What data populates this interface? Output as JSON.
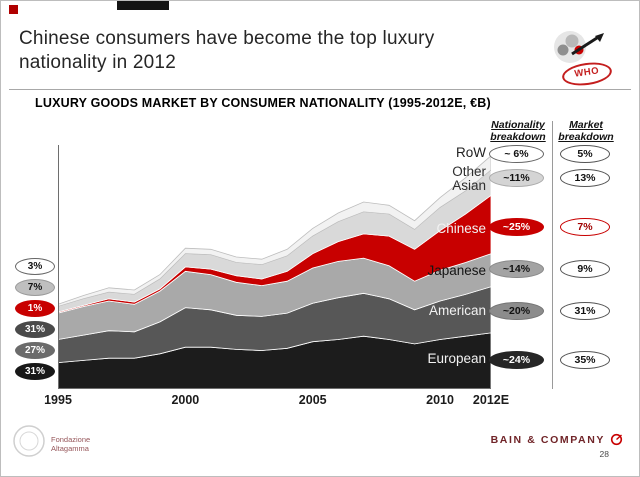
{
  "slide": {
    "title": "Chinese consumers have become the top luxury nationality in 2012",
    "who_stamp": "WHO",
    "page_number": "28",
    "footer_brand": "BAIN & COMPANY",
    "footer_logo_line1": "Fondazione",
    "footer_logo_line2": "Altagamma"
  },
  "chart_header": {
    "title": "LUXURY GOODS MARKET BY CONSUMER NATIONALITY (1995-2012E, €B)",
    "nationality_col": "Nationality breakdown",
    "market_col": "Market breakdown"
  },
  "colors": {
    "accent_red": "#c80000",
    "european": "#1c1c1c",
    "american": "#575757",
    "japanese": "#a9a9a9",
    "chinese": "#c80000",
    "other_asian": "#d9d9d9",
    "row": "#f2f2f2"
  },
  "left_badges": [
    {
      "label": "3%",
      "bg": "#ffffff",
      "fg": "#111111",
      "border": "#666666"
    },
    {
      "label": "7%",
      "bg": "#bfbfbf",
      "fg": "#111111",
      "border": "#9a9a9a"
    },
    {
      "label": "1%",
      "bg": "#c80000",
      "fg": "#ffffff",
      "border": "#c80000"
    },
    {
      "label": "31%",
      "bg": "#4a4a4a",
      "fg": "#ffffff",
      "border": "#4a4a4a"
    },
    {
      "label": "27%",
      "bg": "#6b6b6b",
      "fg": "#ffffff",
      "border": "#6b6b6b"
    },
    {
      "label": "31%",
      "bg": "#181818",
      "fg": "#ffffff",
      "border": "#181818"
    }
  ],
  "nationality_breakdown": [
    {
      "label": "~ 6%",
      "bg": "#ffffff",
      "fg": "#111111",
      "border": "#666666"
    },
    {
      "label": "~11%",
      "bg": "#d4d4d4",
      "fg": "#111111",
      "border": "#ababab"
    },
    {
      "label": "~25%",
      "bg": "#c80000",
      "fg": "#ffffff",
      "border": "#c80000"
    },
    {
      "label": "~14%",
      "bg": "#a3a3a3",
      "fg": "#111111",
      "border": "#8a8a8a"
    },
    {
      "label": "~20%",
      "bg": "#8c8c8c",
      "fg": "#111111",
      "border": "#757575"
    },
    {
      "label": "~24%",
      "bg": "#262626",
      "fg": "#ffffff",
      "border": "#262626"
    }
  ],
  "market_breakdown": [
    {
      "label": "5%",
      "bg": "#ffffff",
      "fg": "#111111",
      "border": "#555555"
    },
    {
      "label": "13%",
      "bg": "#ffffff",
      "fg": "#111111",
      "border": "#555555"
    },
    {
      "label": "7%",
      "bg": "#ffffff",
      "fg": "#a00000",
      "border": "#c80000"
    },
    {
      "label": "9%",
      "bg": "#ffffff",
      "fg": "#111111",
      "border": "#555555"
    },
    {
      "label": "31%",
      "bg": "#ffffff",
      "fg": "#111111",
      "border": "#555555"
    },
    {
      "label": "35%",
      "bg": "#ffffff",
      "fg": "#111111",
      "border": "#555555"
    }
  ],
  "chart_data": {
    "type": "area",
    "stacked": true,
    "title": "LUXURY GOODS MARKET BY CONSUMER NATIONALITY (1995-2012E, €B)",
    "unit": "€B",
    "ylim": [
      0,
      220
    ],
    "grid": false,
    "x": [
      1995,
      1996,
      1997,
      1998,
      1999,
      2000,
      2001,
      2002,
      2003,
      2004,
      2005,
      2006,
      2007,
      2008,
      2009,
      2010,
      2011,
      2012
    ],
    "x_ticks": [
      {
        "label": "1995",
        "year": 1995
      },
      {
        "label": "2000",
        "year": 2000
      },
      {
        "label": "2005",
        "year": 2005
      },
      {
        "label": "2010",
        "year": 2010
      },
      {
        "label": "2012E",
        "year": 2012
      }
    ],
    "series": [
      {
        "name": "European",
        "color": "#1c1c1c",
        "stroke": "#ffffff",
        "values": [
          24,
          26,
          28,
          28,
          32,
          38,
          38,
          36,
          35,
          37,
          43,
          45,
          48,
          45,
          41,
          45,
          48,
          51
        ],
        "share_1995": "31%",
        "share_2012": "~24%"
      },
      {
        "name": "American",
        "color": "#575757",
        "stroke": "#ffffff",
        "values": [
          21,
          23,
          25,
          24,
          29,
          36,
          34,
          31,
          31,
          32,
          35,
          38,
          39,
          37,
          31,
          35,
          38,
          42
        ],
        "share_1995": "27%",
        "share_2012": "~20%"
      },
      {
        "name": "Japanese",
        "color": "#a9a9a9",
        "stroke": "#ffffff",
        "values": [
          24,
          26,
          27,
          25,
          28,
          33,
          32,
          30,
          28,
          29,
          32,
          33,
          32,
          30,
          26,
          28,
          29,
          30
        ],
        "share_1995": "31%",
        "share_2012": "~14%"
      },
      {
        "name": "Chinese",
        "color": "#c80000",
        "stroke": "#ffffff",
        "values": [
          1,
          1,
          2,
          2,
          2,
          4,
          5,
          6,
          6,
          9,
          13,
          18,
          22,
          27,
          29,
          36,
          44,
          53
        ],
        "share_1995": "1%",
        "share_2012": "~25%"
      },
      {
        "name": "Other Asian",
        "color": "#d9d9d9",
        "stroke": "#ffffff",
        "values": [
          5,
          6,
          6,
          7,
          9,
          12,
          13,
          12,
          13,
          14,
          16,
          18,
          20,
          20,
          18,
          21,
          21,
          23
        ],
        "share_1995": "7%",
        "share_2012": "~11%"
      },
      {
        "name": "RoW",
        "color": "#f2f2f2",
        "stroke": "#bdbdbd",
        "values": [
          2,
          3,
          4,
          4,
          4,
          5,
          5,
          5,
          5,
          6,
          7,
          8,
          9,
          8,
          8,
          9,
          12,
          13
        ],
        "share_1995": "3%",
        "share_2012": "~ 6%"
      }
    ]
  }
}
